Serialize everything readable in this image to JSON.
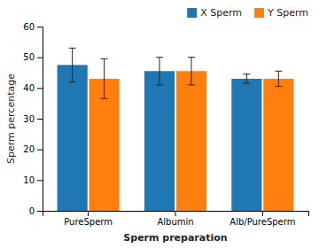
{
  "chart_data": {
    "type": "bar",
    "categories": [
      "PureSperm",
      "Albumin",
      "Alb/PureSperm"
    ],
    "series": [
      {
        "name": "X Sperm",
        "values": [
          47.5,
          45.5,
          43.0
        ],
        "errors": [
          5.5,
          4.5,
          1.5
        ]
      },
      {
        "name": "Y Sperm",
        "values": [
          43.0,
          45.5,
          43.0
        ],
        "errors": [
          6.5,
          4.5,
          2.5
        ]
      }
    ],
    "xlabel": "Sperm preparation",
    "ylabel": "Sperm percentage",
    "ylim": [
      0,
      60
    ],
    "yticks": [
      0,
      10,
      20,
      30,
      40,
      50,
      60
    ],
    "grid": false,
    "legend": "upper right"
  }
}
